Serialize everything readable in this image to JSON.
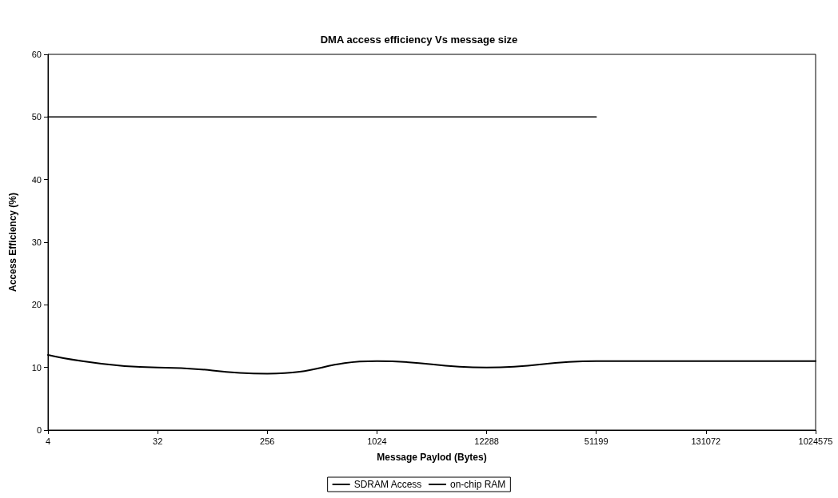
{
  "chart_data": {
    "type": "line",
    "title": "DMA access efficiency Vs message size",
    "xlabel": "Message Paylod (Bytes)",
    "ylabel": "Access Efficiency (%)",
    "categories": [
      "4",
      "32",
      "256",
      "1024",
      "12288",
      "51199",
      "131072",
      "1024575"
    ],
    "series": [
      {
        "name": "SDRAM Access",
        "color": "#000000",
        "values": [
          12,
          10,
          9,
          11,
          10,
          11,
          11,
          11
        ]
      },
      {
        "name": "on-chip RAM",
        "color": "#000000",
        "values": [
          50,
          50,
          50,
          50,
          50,
          50,
          null,
          null
        ]
      }
    ],
    "ylim": [
      0,
      60
    ],
    "yticks": [
      0,
      10,
      20,
      30,
      40,
      50,
      60
    ],
    "grid": false,
    "legend": "bottom",
    "marker": "none",
    "line_style": "solid"
  }
}
